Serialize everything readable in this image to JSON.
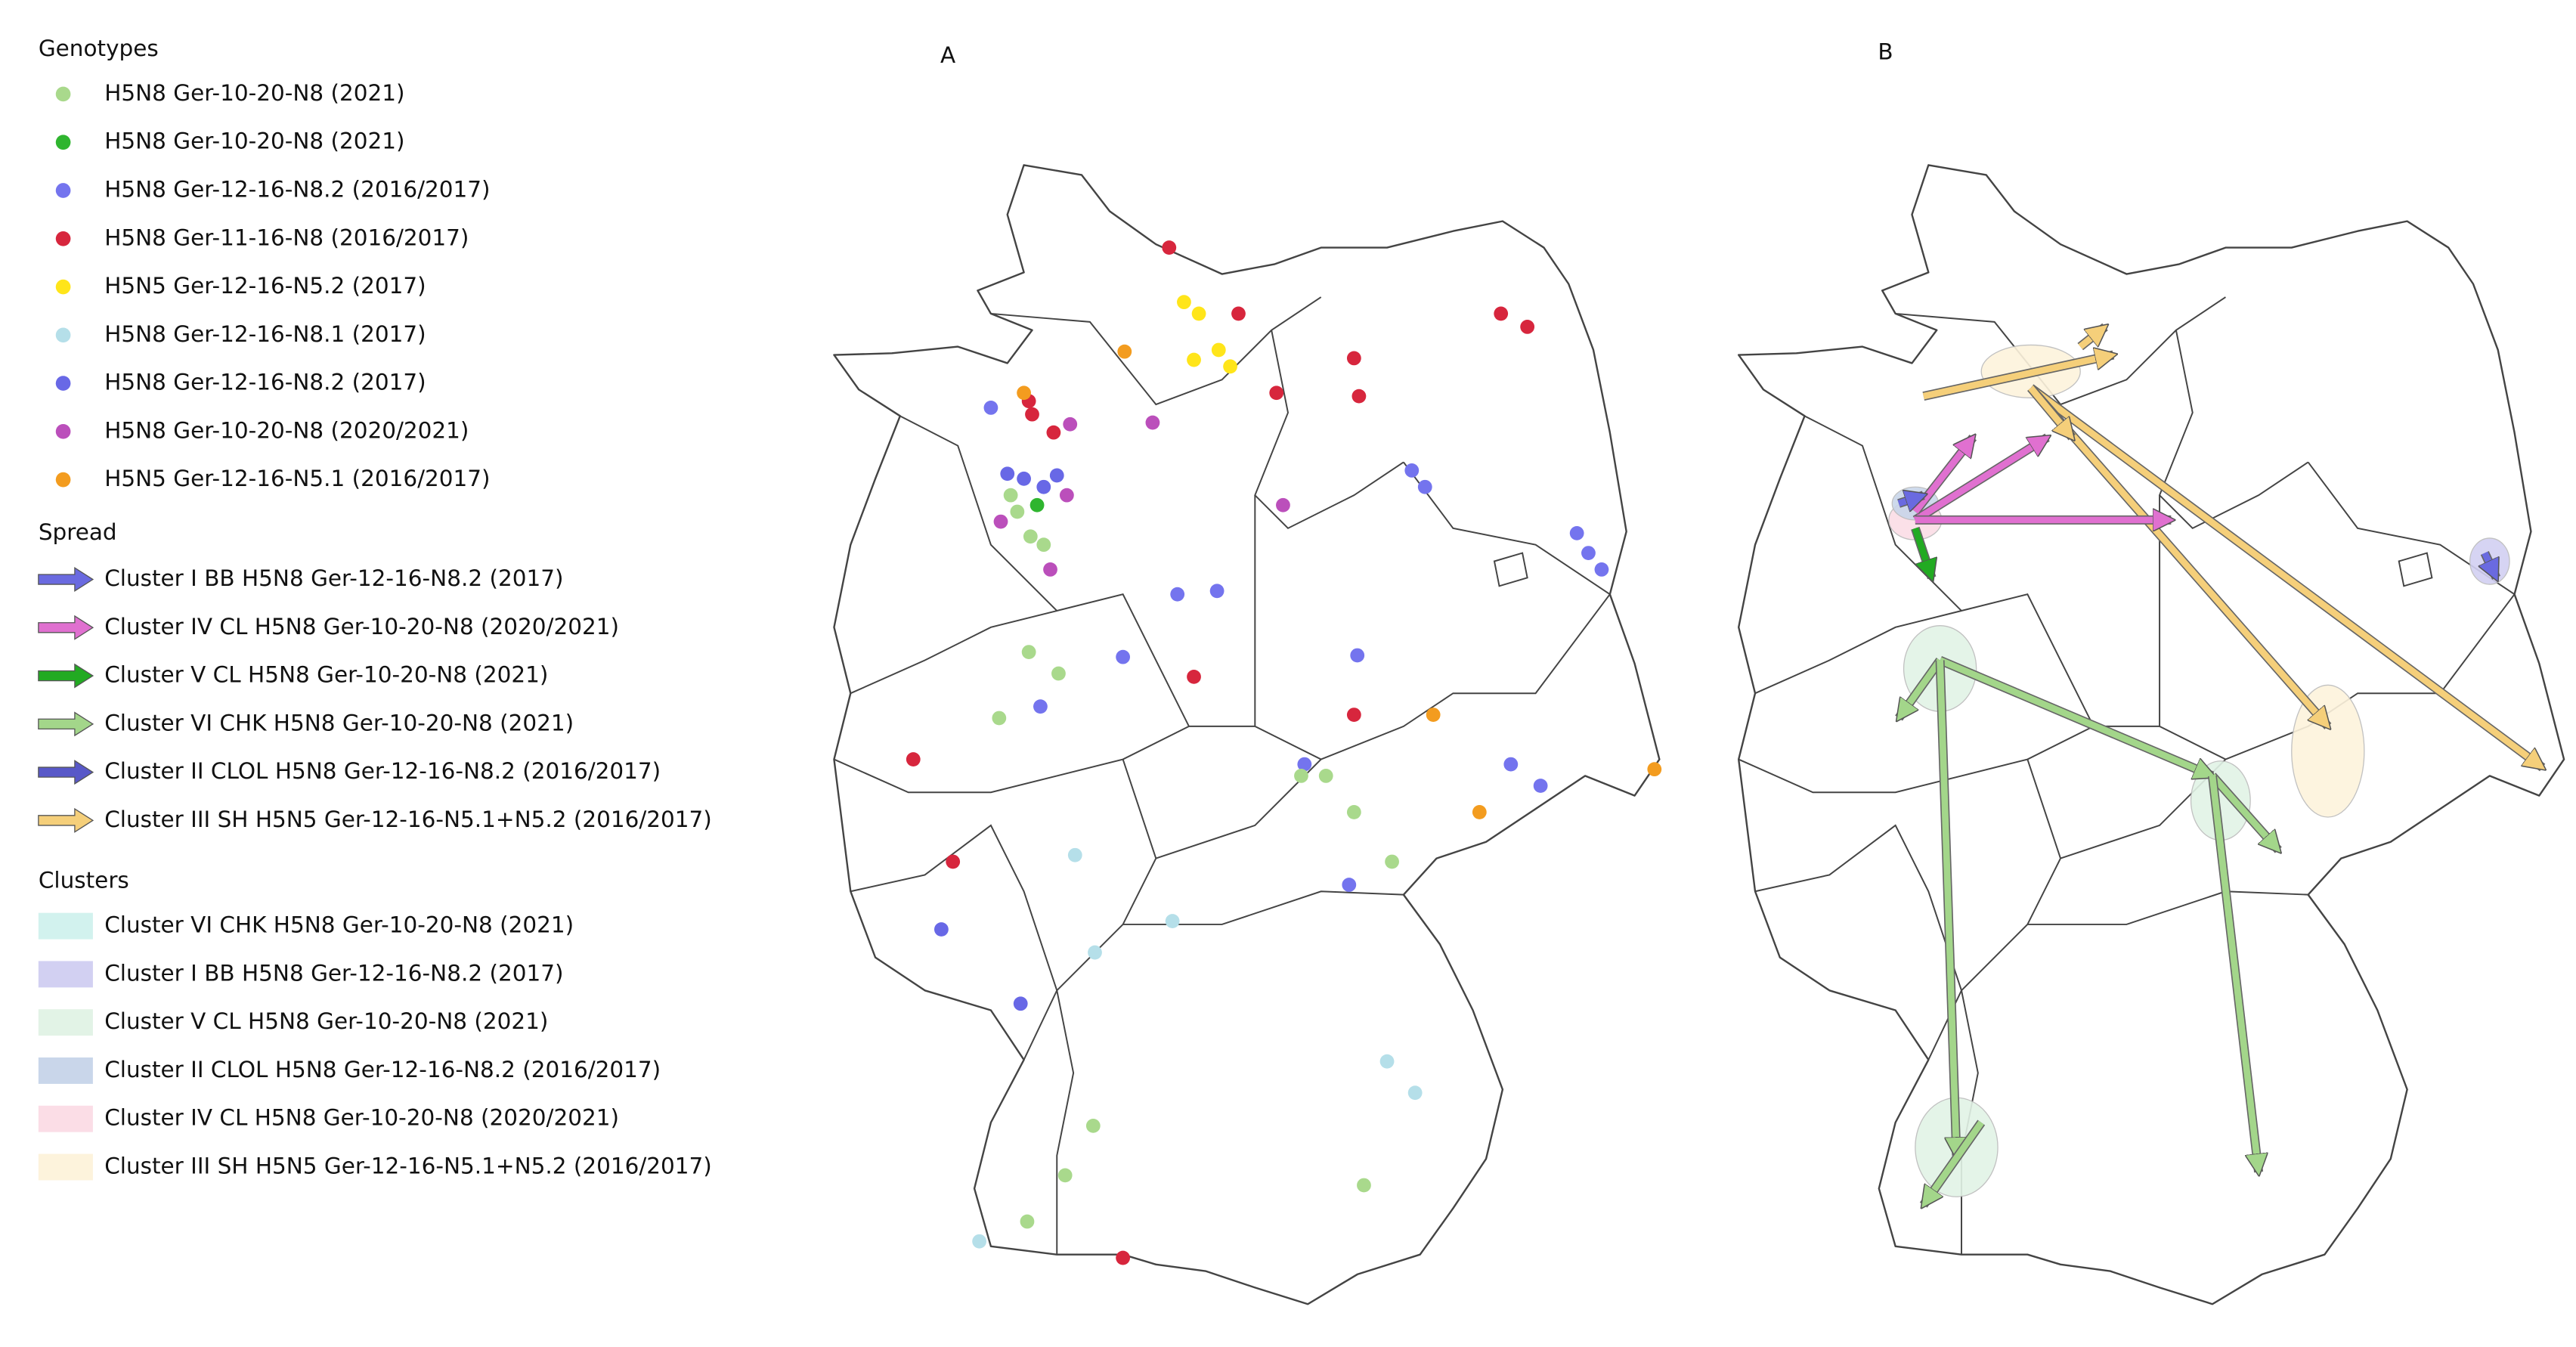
{
  "labels": {
    "a": "A",
    "b": "B"
  },
  "legend": {
    "genotypes": {
      "title": "Genotypes",
      "items": [
        {
          "label": "H5N8 Ger-10-20-N8 (2021)",
          "color": "#a9d98c"
        },
        {
          "label": "H5N8 Ger-10-20-N8 (2021)",
          "color": "#2fb52f"
        },
        {
          "label": "H5N8 Ger-12-16-N8.2 (2016/2017)",
          "color": "#7474ee"
        },
        {
          "label": "H5N8 Ger-11-16-N8 (2016/2017)",
          "color": "#d7263d"
        },
        {
          "label": "H5N5 Ger-12-16-N5.2 (2017)",
          "color": "#ffe51a"
        },
        {
          "label": "H5N8 Ger-12-16-N8.1 (2017)",
          "color": "#b5dfe9"
        },
        {
          "label": "H5N8 Ger-12-16-N8.2 (2017)",
          "color": "#6868e6"
        },
        {
          "label": "H5N8 Ger-10-20-N8 (2020/2021)",
          "color": "#bb4fbb"
        },
        {
          "label": "H5N5 Ger-12-16-N5.1 (2016/2017)",
          "color": "#f39c1f"
        }
      ]
    },
    "spread": {
      "title": "Spread",
      "items": [
        {
          "label": "Cluster I BB H5N8 Ger-12-16-N8.2 (2017)",
          "color": "#6a6ae0"
        },
        {
          "label": "Cluster IV CL H5N8 Ger-10-20-N8 (2020/2021)",
          "color": "#e070d0"
        },
        {
          "label": "Cluster V CL H5N8 Ger-10-20-N8 (2021)",
          "color": "#22aa22"
        },
        {
          "label": "Cluster VI CHK H5N8 Ger-10-20-N8 (2021)",
          "color": "#a3d68a"
        },
        {
          "label": "Cluster II CLOL H5N8 Ger-12-16-N8.2 (2016/2017)",
          "color": "#5858c8"
        },
        {
          "label": "Cluster III SH H5N5 Ger-12-16-N5.1+N5.2 (2016/2017)",
          "color": "#f5cf7a"
        }
      ]
    },
    "clusters": {
      "title": "Clusters",
      "items": [
        {
          "label": "Cluster VI CHK H5N8 Ger-10-20-N8 (2021)",
          "color": "#d2f2ee"
        },
        {
          "label": "Cluster I BB H5N8 Ger-12-16-N8.2 (2017)",
          "color": "#d2d0f2"
        },
        {
          "label": "Cluster V CL H5N8 Ger-10-20-N8 (2021)",
          "color": "#e2f3e6"
        },
        {
          "label": "Cluster II CLOL H5N8 Ger-12-16-N8.2 (2016/2017)",
          "color": "#c9d6ea"
        },
        {
          "label": "Cluster IV CL H5N8 Ger-10-20-N8 (2020/2021)",
          "color": "#fbdde6"
        },
        {
          "label": "Cluster III SH H5N5 Ger-12-16-N5.1+N5.2 (2016/2017)",
          "color": "#fdf3dc"
        }
      ]
    }
  }
}
